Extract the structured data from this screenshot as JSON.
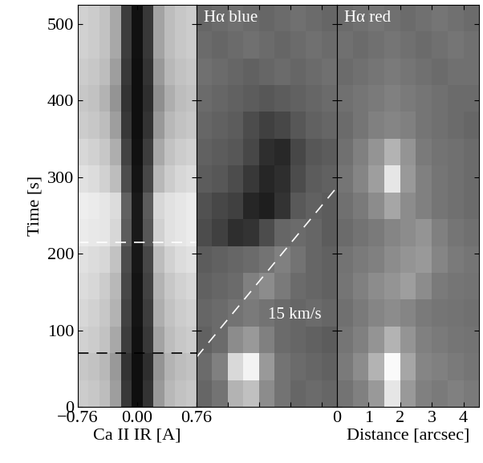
{
  "chart_data": [
    {
      "type": "heatmap",
      "xlabel": "Ca II IR [A]",
      "ylabel": "Time [s]",
      "color": "gray",
      "color_range": [
        0,
        1
      ],
      "x_edges": [
        -0.76,
        -0.622,
        -0.484,
        -0.345,
        -0.207,
        -0.069,
        0.069,
        0.207,
        0.345,
        0.484,
        0.622,
        0.76
      ],
      "y_edges": [
        0,
        35,
        70,
        105,
        140,
        175,
        210,
        245,
        280,
        315,
        350,
        385,
        420,
        455,
        490,
        525
      ],
      "xlim": [
        -0.76,
        0.76
      ],
      "ylim": [
        0,
        525
      ],
      "xticks": [
        {
          "value": -0.76,
          "label": "−0.76"
        },
        {
          "value": 0,
          "label": "0.00"
        },
        0.76
      ],
      "yticks": [
        0,
        100,
        200,
        300,
        400,
        500
      ],
      "tick_labels": true,
      "cells": [
        [
          0.8,
          0.78,
          0.74,
          0.62,
          0.22,
          0.06,
          0.2,
          0.6,
          0.72,
          0.76,
          0.78
        ],
        [
          0.78,
          0.76,
          0.72,
          0.6,
          0.2,
          0.06,
          0.18,
          0.58,
          0.7,
          0.74,
          0.76
        ],
        [
          0.82,
          0.8,
          0.76,
          0.66,
          0.24,
          0.07,
          0.22,
          0.64,
          0.74,
          0.78,
          0.8
        ],
        [
          0.84,
          0.82,
          0.78,
          0.7,
          0.26,
          0.08,
          0.24,
          0.68,
          0.76,
          0.8,
          0.82
        ],
        [
          0.86,
          0.84,
          0.8,
          0.72,
          0.28,
          0.08,
          0.26,
          0.7,
          0.78,
          0.82,
          0.84
        ],
        [
          0.88,
          0.86,
          0.84,
          0.76,
          0.3,
          0.09,
          0.28,
          0.74,
          0.82,
          0.86,
          0.88
        ],
        [
          0.92,
          0.91,
          0.9,
          0.84,
          0.36,
          0.1,
          0.34,
          0.82,
          0.88,
          0.9,
          0.92
        ],
        [
          0.93,
          0.92,
          0.9,
          0.86,
          0.38,
          0.1,
          0.36,
          0.84,
          0.88,
          0.9,
          0.92
        ],
        [
          0.88,
          0.86,
          0.82,
          0.74,
          0.3,
          0.08,
          0.28,
          0.72,
          0.8,
          0.84,
          0.86
        ],
        [
          0.84,
          0.82,
          0.78,
          0.68,
          0.26,
          0.07,
          0.24,
          0.66,
          0.76,
          0.8,
          0.82
        ],
        [
          0.8,
          0.78,
          0.74,
          0.62,
          0.22,
          0.06,
          0.2,
          0.6,
          0.72,
          0.76,
          0.78
        ],
        [
          0.78,
          0.76,
          0.7,
          0.58,
          0.2,
          0.06,
          0.18,
          0.56,
          0.68,
          0.74,
          0.76
        ],
        [
          0.8,
          0.78,
          0.74,
          0.62,
          0.22,
          0.06,
          0.2,
          0.6,
          0.72,
          0.76,
          0.78
        ],
        [
          0.82,
          0.8,
          0.76,
          0.66,
          0.24,
          0.07,
          0.22,
          0.64,
          0.74,
          0.78,
          0.8
        ],
        [
          0.82,
          0.8,
          0.76,
          0.66,
          0.24,
          0.07,
          0.22,
          0.64,
          0.74,
          0.78,
          0.8
        ]
      ],
      "lines": [
        {
          "x": [
            -0.76,
            0.76
          ],
          "y": [
            215,
            215
          ],
          "color": "white",
          "line_style": "dashed"
        },
        {
          "x": [
            -0.76,
            0.76
          ],
          "y": [
            70,
            70
          ],
          "color": "black",
          "line_style": "dashed"
        }
      ]
    },
    {
      "type": "heatmap",
      "title": "Hα blue",
      "color": "gray",
      "color_range": [
        0,
        1
      ],
      "x_edges": [
        0,
        0.5,
        1.0,
        1.5,
        2.0,
        2.5,
        3.0,
        3.5,
        4.0,
        4.5
      ],
      "y_edges": [
        0,
        35,
        70,
        105,
        140,
        175,
        210,
        245,
        280,
        315,
        350,
        385,
        420,
        455,
        490,
        525
      ],
      "xlim": [
        0,
        4.5
      ],
      "ylim": [
        0,
        525
      ],
      "xticks": [
        0,
        1,
        2,
        3,
        4
      ],
      "yticks": [
        0,
        100,
        200,
        300,
        400,
        500
      ],
      "tick_labels": false,
      "cells": [
        [
          0.4,
          0.45,
          0.7,
          0.75,
          0.55,
          0.45,
          0.4,
          0.42,
          0.4
        ],
        [
          0.42,
          0.5,
          0.85,
          0.95,
          0.6,
          0.45,
          0.42,
          0.4,
          0.38
        ],
        [
          0.38,
          0.42,
          0.55,
          0.6,
          0.5,
          0.42,
          0.4,
          0.38,
          0.36
        ],
        [
          0.4,
          0.42,
          0.45,
          0.48,
          0.45,
          0.42,
          0.4,
          0.42,
          0.4
        ],
        [
          0.38,
          0.4,
          0.42,
          0.5,
          0.55,
          0.48,
          0.42,
          0.4,
          0.38
        ],
        [
          0.36,
          0.38,
          0.4,
          0.42,
          0.45,
          0.5,
          0.45,
          0.4,
          0.38
        ],
        [
          0.3,
          0.25,
          0.18,
          0.2,
          0.3,
          0.4,
          0.42,
          0.4,
          0.36
        ],
        [
          0.32,
          0.28,
          0.25,
          0.15,
          0.12,
          0.2,
          0.35,
          0.38,
          0.36
        ],
        [
          0.36,
          0.34,
          0.3,
          0.22,
          0.15,
          0.18,
          0.3,
          0.36,
          0.38
        ],
        [
          0.38,
          0.36,
          0.34,
          0.28,
          0.18,
          0.16,
          0.28,
          0.34,
          0.36
        ],
        [
          0.4,
          0.38,
          0.36,
          0.3,
          0.25,
          0.28,
          0.34,
          0.38,
          0.4
        ],
        [
          0.42,
          0.4,
          0.38,
          0.36,
          0.34,
          0.36,
          0.38,
          0.4,
          0.42
        ],
        [
          0.44,
          0.42,
          0.4,
          0.38,
          0.4,
          0.42,
          0.4,
          0.42,
          0.44
        ],
        [
          0.42,
          0.4,
          0.42,
          0.44,
          0.42,
          0.4,
          0.42,
          0.44,
          0.42
        ],
        [
          0.4,
          0.42,
          0.44,
          0.42,
          0.4,
          0.42,
          0.44,
          0.42,
          0.4
        ]
      ],
      "lines": [
        {
          "x": [
            0,
            4.5
          ],
          "y": [
            65,
            287
          ],
          "color": "white",
          "line_style": "dashed"
        }
      ],
      "annotations": [
        {
          "text": "15 km/s",
          "x": 2.3,
          "y": 120,
          "color": "white"
        }
      ]
    },
    {
      "type": "heatmap",
      "title": "Hα red",
      "xlabel": "Distance [arcsec]",
      "color": "gray",
      "color_range": [
        0,
        1
      ],
      "x_edges": [
        0,
        0.5,
        1.0,
        1.5,
        2.0,
        2.5,
        3.0,
        3.5,
        4.0,
        4.5
      ],
      "y_edges": [
        0,
        35,
        70,
        105,
        140,
        175,
        210,
        245,
        280,
        315,
        350,
        385,
        420,
        455,
        490,
        525
      ],
      "xlim": [
        0,
        4.5
      ],
      "ylim": [
        0,
        525
      ],
      "xticks": [
        0,
        1,
        2,
        3,
        4
      ],
      "yticks": [
        0,
        100,
        200,
        300,
        400,
        500
      ],
      "tick_labels": "x",
      "cells": [
        [
          0.45,
          0.5,
          0.6,
          0.9,
          0.6,
          0.5,
          0.48,
          0.5,
          0.48
        ],
        [
          0.48,
          0.55,
          0.7,
          0.98,
          0.65,
          0.52,
          0.5,
          0.48,
          0.46
        ],
        [
          0.46,
          0.5,
          0.58,
          0.7,
          0.58,
          0.5,
          0.48,
          0.46,
          0.45
        ],
        [
          0.44,
          0.48,
          0.52,
          0.55,
          0.52,
          0.48,
          0.46,
          0.45,
          0.44
        ],
        [
          0.46,
          0.5,
          0.55,
          0.58,
          0.62,
          0.55,
          0.48,
          0.46,
          0.45
        ],
        [
          0.45,
          0.48,
          0.5,
          0.55,
          0.58,
          0.6,
          0.52,
          0.48,
          0.46
        ],
        [
          0.42,
          0.45,
          0.48,
          0.52,
          0.55,
          0.58,
          0.5,
          0.46,
          0.44
        ],
        [
          0.44,
          0.48,
          0.55,
          0.65,
          0.55,
          0.5,
          0.46,
          0.44,
          0.42
        ],
        [
          0.46,
          0.52,
          0.62,
          0.9,
          0.6,
          0.5,
          0.46,
          0.44,
          0.42
        ],
        [
          0.44,
          0.5,
          0.58,
          0.7,
          0.58,
          0.48,
          0.45,
          0.44,
          0.42
        ],
        [
          0.42,
          0.46,
          0.5,
          0.52,
          0.5,
          0.46,
          0.44,
          0.42,
          0.4
        ],
        [
          0.44,
          0.46,
          0.48,
          0.5,
          0.48,
          0.46,
          0.44,
          0.42,
          0.42
        ],
        [
          0.42,
          0.44,
          0.46,
          0.48,
          0.46,
          0.44,
          0.42,
          0.44,
          0.44
        ],
        [
          0.44,
          0.42,
          0.44,
          0.46,
          0.44,
          0.42,
          0.44,
          0.46,
          0.44
        ],
        [
          0.42,
          0.44,
          0.46,
          0.44,
          0.42,
          0.44,
          0.46,
          0.44,
          0.42
        ]
      ]
    }
  ]
}
